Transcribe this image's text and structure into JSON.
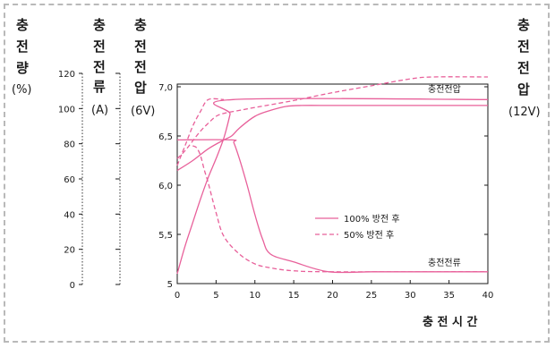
{
  "chart_data": {
    "type": "line",
    "xlabel": "충 전 시 간",
    "x_ticks": [
      "0",
      "5",
      "10",
      "15",
      "20",
      "25",
      "30",
      "35",
      "40"
    ],
    "xlim": [
      0,
      40
    ],
    "axes": {
      "charge_amount": {
        "title": [
          "충",
          "전",
          "량"
        ],
        "unit": "(%)",
        "ticks": [
          "0",
          "20",
          "40",
          "60",
          "80",
          "100",
          "120"
        ],
        "range": [
          0,
          120
        ]
      },
      "charge_current": {
        "title": [
          "충",
          "전",
          "전",
          "류"
        ],
        "unit": "(A)"
      },
      "charge_voltage_6v": {
        "title": [
          "충",
          "전",
          "전",
          "압"
        ],
        "unit": "(6V)",
        "ticks": [
          "5",
          "5,5",
          "6,0",
          "6,5",
          "7,0"
        ],
        "range": [
          5.0,
          7.0
        ]
      },
      "charge_voltage_12v": {
        "title": [
          "충",
          "전",
          "전",
          "압"
        ],
        "unit": "(12V)"
      }
    },
    "curve_labels": {
      "voltage": "충전전압",
      "current": "충전전류"
    },
    "legend": {
      "placement": "center-right",
      "items": [
        {
          "label": "100% 방전 후",
          "style": "solid"
        },
        {
          "label": "50% 방전 후",
          "style": "dashed"
        }
      ]
    },
    "color": "#e8609a",
    "series": [
      {
        "group": "100% 방전 후",
        "kind": "voltage",
        "style": "solid",
        "x": [
          0,
          2,
          4,
          6,
          7,
          8,
          10,
          12,
          14,
          16,
          20,
          25,
          30,
          40
        ],
        "y": [
          6.15,
          6.25,
          6.37,
          6.46,
          6.5,
          6.58,
          6.7,
          6.76,
          6.8,
          6.81,
          6.81,
          6.81,
          6.81,
          6.81
        ]
      },
      {
        "group": "100% 방전 후",
        "kind": "current",
        "style": "solid",
        "x": [
          0,
          7,
          7.3,
          8,
          9,
          10,
          11,
          12,
          15,
          19.5,
          25,
          30,
          40
        ],
        "y": [
          6.46,
          6.46,
          6.43,
          6.27,
          6.0,
          5.7,
          5.45,
          5.3,
          5.22,
          5.12,
          5.12,
          5.12,
          5.12
        ]
      },
      {
        "group": "100% 방전 후",
        "kind": "charge_amount",
        "style": "solid",
        "x": [
          0,
          1,
          2,
          3,
          4,
          5,
          6,
          6.8,
          7.2,
          40
        ],
        "y": [
          5.1,
          5.38,
          5.62,
          5.86,
          6.08,
          6.27,
          6.48,
          6.72,
          6.87,
          6.87
        ]
      },
      {
        "group": "50% 방전 후",
        "kind": "voltage",
        "style": "dashed",
        "x": [
          0,
          1,
          2,
          3,
          4,
          5,
          6,
          8,
          10,
          15,
          20,
          25,
          30,
          33,
          40
        ],
        "y": [
          6.27,
          6.35,
          6.45,
          6.55,
          6.63,
          6.7,
          6.73,
          6.76,
          6.79,
          6.86,
          6.94,
          7.01,
          7.08,
          7.1,
          7.1
        ]
      },
      {
        "group": "50% 방전 후",
        "kind": "current",
        "style": "dashed",
        "x": [
          2,
          2.5,
          3,
          3.5,
          4,
          5,
          6,
          8,
          10,
          12,
          15,
          20,
          40
        ],
        "y": [
          6.4,
          6.38,
          6.3,
          6.15,
          6.02,
          5.72,
          5.48,
          5.3,
          5.2,
          5.16,
          5.13,
          5.12,
          5.12
        ]
      },
      {
        "group": "50% 방전 후",
        "kind": "charge_amount",
        "style": "dashed",
        "x": [
          0,
          1,
          2,
          3,
          4,
          6
        ],
        "y": [
          6.2,
          6.4,
          6.6,
          6.75,
          6.87,
          6.87
        ]
      }
    ]
  }
}
